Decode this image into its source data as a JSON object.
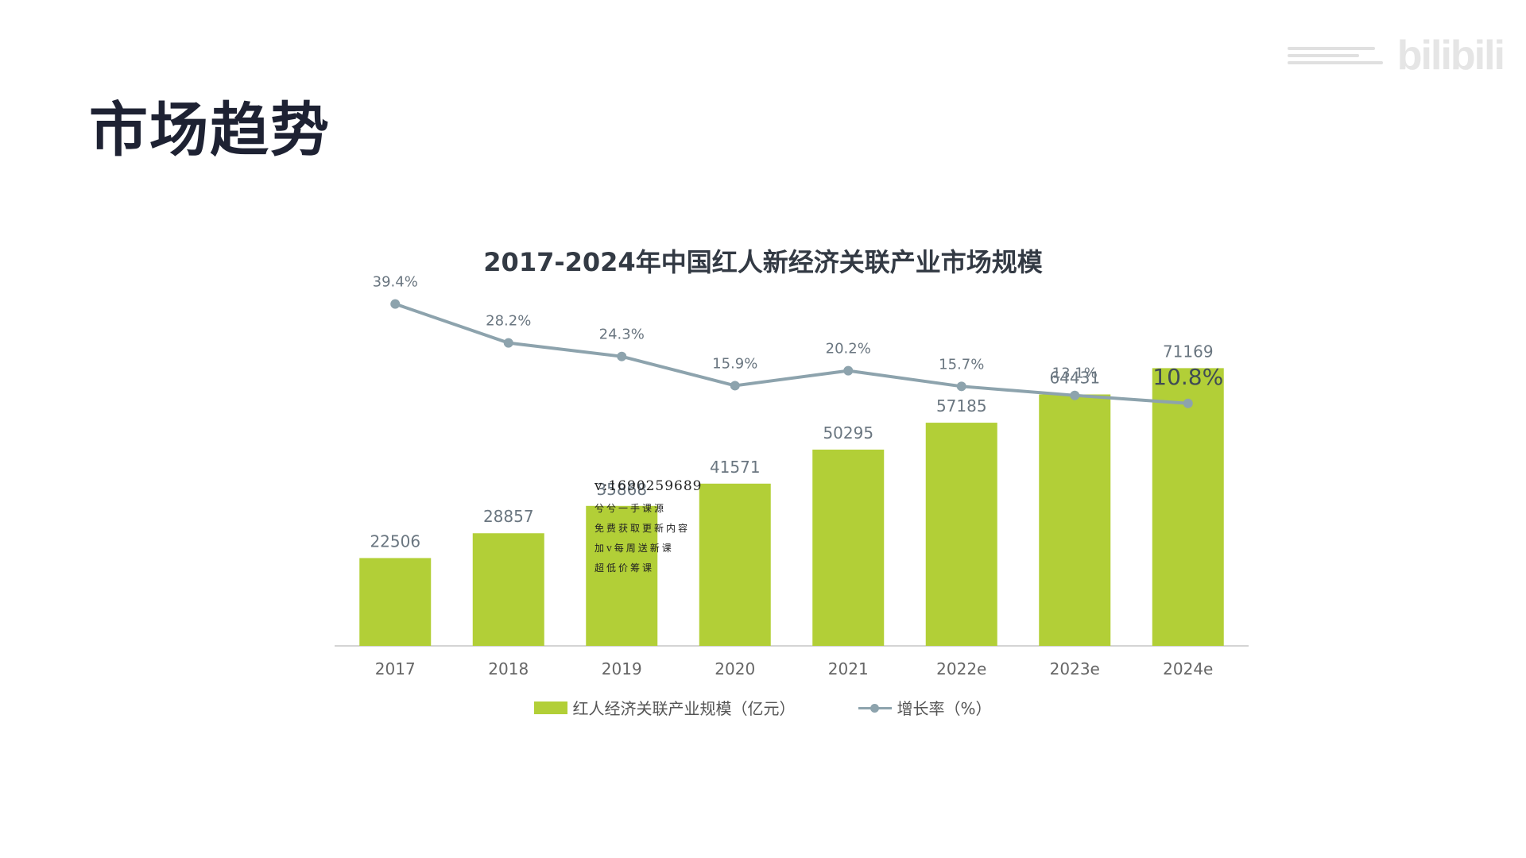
{
  "page": {
    "title": "市场趋势"
  },
  "watermark": {
    "text": "bilibili",
    "icon": "bilibili-logo-icon"
  },
  "overlay_note": {
    "contact": "v:1690259689",
    "lines": [
      "兮兮一手课源",
      "免费获取更新内容",
      "加v每周送新课",
      "超低价筹课"
    ]
  },
  "chart_data": {
    "type": "bar",
    "title": "2017-2024年中国红人新经济关联产业市场规模",
    "categories": [
      "2017",
      "2018",
      "2019",
      "2020",
      "2021",
      "2022e",
      "2023e",
      "2024e"
    ],
    "series": [
      {
        "name": "红人经济关联产业规模（亿元）",
        "type": "bar",
        "values": [
          22506,
          28857,
          35868,
          41571,
          50295,
          57185,
          64431,
          71169
        ],
        "labels": [
          "22506",
          "28857",
          "35868",
          "41571",
          "50295",
          "57185",
          "64431",
          "71169"
        ],
        "color": "#b2cf37"
      },
      {
        "name": "增长率（%）",
        "type": "line",
        "values": [
          39.4,
          28.2,
          24.3,
          15.9,
          20.2,
          15.7,
          13.1,
          10.8
        ],
        "labels": [
          "39.4%",
          "28.2%",
          "24.3%",
          "15.9%",
          "20.2%",
          "15.7%",
          "13.1%",
          "10.8%"
        ],
        "color": "#8da3ad"
      }
    ],
    "bar_ylim": [
      0,
      80000
    ],
    "line_ylim": [
      0,
      40
    ],
    "grid": false,
    "legend_position": "bottom-center"
  }
}
